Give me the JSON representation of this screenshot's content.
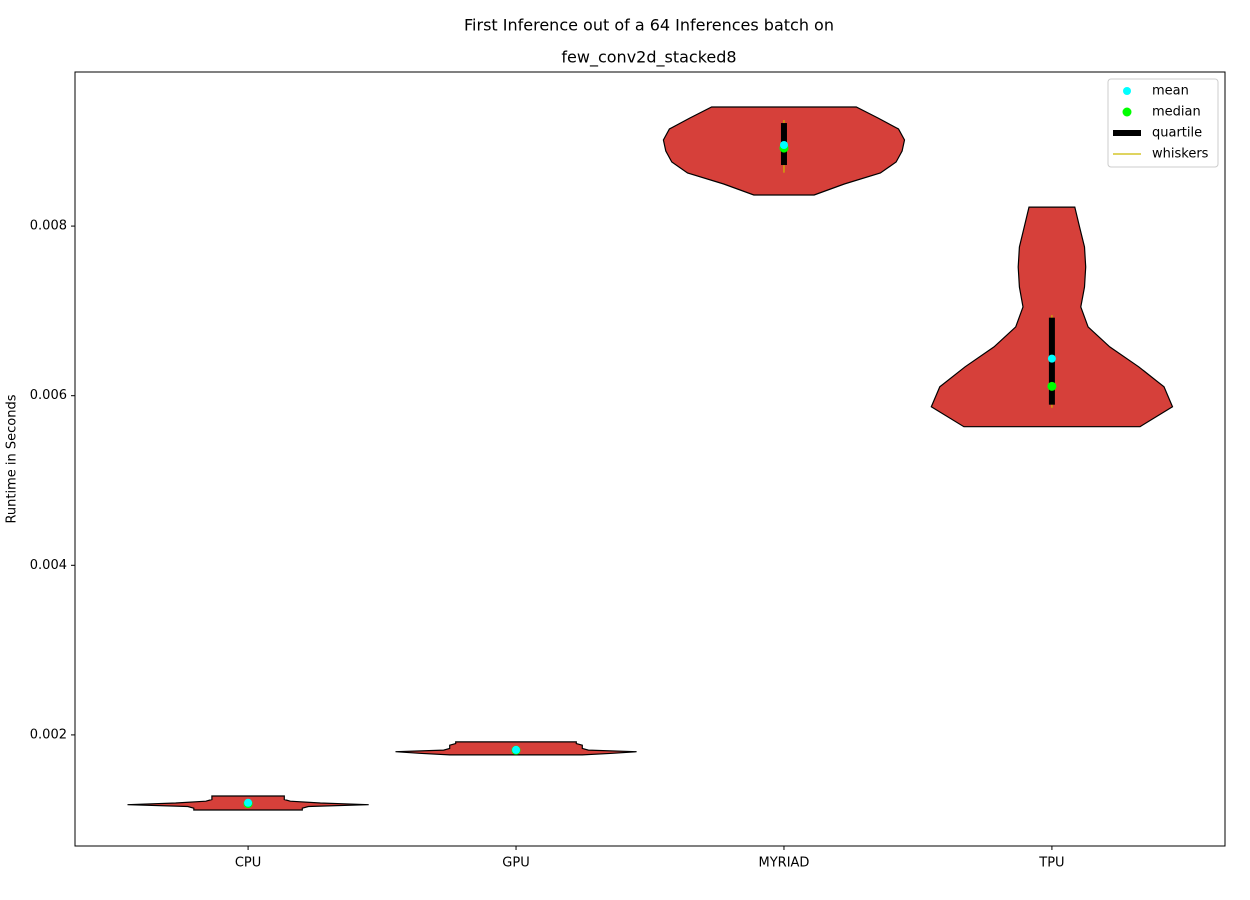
{
  "chart_data": {
    "type": "violin",
    "title": "First Inference out of a 64 Inferences batch on",
    "subtitle": "few_conv2d_stacked8",
    "y_label": "Runtime in Seconds",
    "categories": [
      "CPU",
      "GPU",
      "MYRIAD",
      "TPU"
    ],
    "ylim": [
      0.00069,
      0.009817
    ],
    "yticks": [
      0.002,
      0.004,
      0.006,
      0.008
    ],
    "legend_position": "upper right",
    "legend_labels": [
      "mean",
      "median",
      "quartile",
      "whiskers"
    ],
    "colors": {
      "body": "#d6403a",
      "mean": "#00ffff",
      "median": "#00ff00",
      "quartile": "#000000",
      "whiskers": "#ccbb00"
    },
    "violins": [
      {
        "min": 0.001115,
        "max": 0.00128,
        "mean": 0.0012,
        "median": 0.00119,
        "q1": 0.00118,
        "q3": 0.00121,
        "whisker_low": 0.00117,
        "whisker_high": 0.00122,
        "density": [
          0.45,
          0.45,
          0.5,
          1,
          0.6,
          0.35,
          0.3,
          0.3,
          0.3
        ]
      },
      {
        "min": 0.001764,
        "max": 0.001917,
        "mean": 0.001823,
        "median": 0.00182,
        "q1": 0.00181,
        "q3": 0.00183,
        "whisker_low": 0.00181,
        "whisker_high": 0.00184,
        "density": [
          0.55,
          0.8,
          1,
          0.6,
          0.55,
          0.55,
          0.55,
          0.5,
          0.5
        ]
      },
      {
        "min": 0.008366,
        "max": 0.009404,
        "mean": 0.008956,
        "median": 0.00892,
        "q1": 0.00872,
        "q3": 0.009215,
        "whisker_low": 0.00863,
        "whisker_high": 0.00925,
        "density": [
          0.25,
          0.5,
          0.8,
          0.93,
          0.98,
          1,
          0.95,
          0.78,
          0.6
        ]
      },
      {
        "min": 0.005634,
        "max": 0.008224,
        "mean": 0.006437,
        "median": 0.00611,
        "q1": 0.005894,
        "q3": 0.00692,
        "whisker_low": 0.005858,
        "whisker_high": 0.00695,
        "density": [
          0.73,
          1,
          0.93,
          0.72,
          0.48,
          0.3,
          0.24,
          0.27,
          0.28,
          0.27,
          0.23,
          0.19
        ]
      }
    ]
  }
}
